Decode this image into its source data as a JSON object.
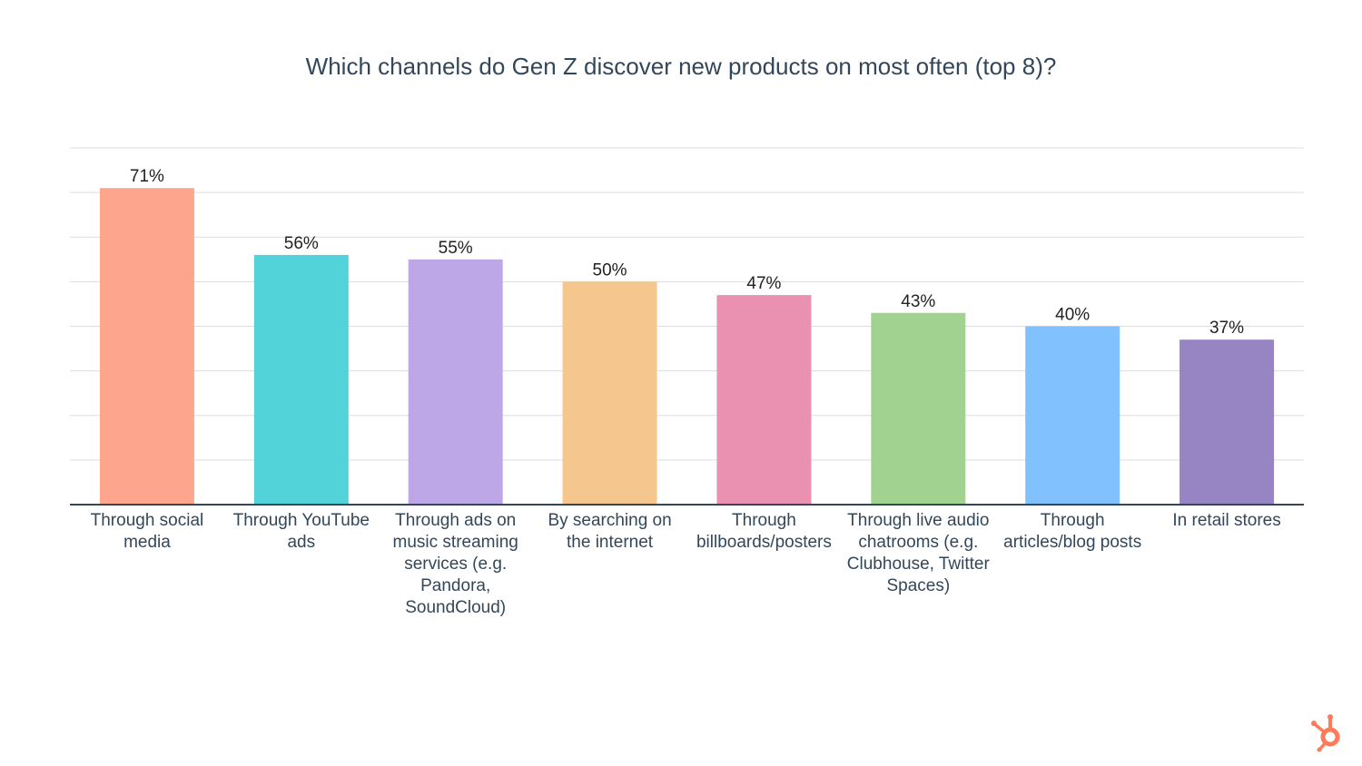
{
  "chart_data": {
    "type": "bar",
    "title": "Which channels do Gen Z discover new products on most often (top 8)?",
    "categories": [
      "Through social media",
      "Through YouTube ads",
      "Through ads on music streaming services (e.g. Pandora, SoundCloud)",
      "By searching on the internet",
      "Through billboards/posters",
      "Through live audio chatrooms (e.g. Clubhouse, Twitter Spaces)",
      "Through articles/blog posts",
      "In retail stores"
    ],
    "values": [
      71,
      56,
      55,
      50,
      47,
      43,
      40,
      37
    ],
    "value_labels": [
      "71%",
      "56%",
      "55%",
      "50%",
      "47%",
      "43%",
      "40%",
      "37%"
    ],
    "colors": [
      "#fea58e",
      "#51d3d9",
      "#bea7e7",
      "#f5c78e",
      "#ea90b1",
      "#a2d28f",
      "#81c1fd",
      "#9784c2"
    ],
    "ylim": [
      0,
      80
    ],
    "yticks": [
      0,
      10,
      20,
      30,
      40,
      50,
      60,
      70,
      80
    ],
    "grid": true
  }
}
